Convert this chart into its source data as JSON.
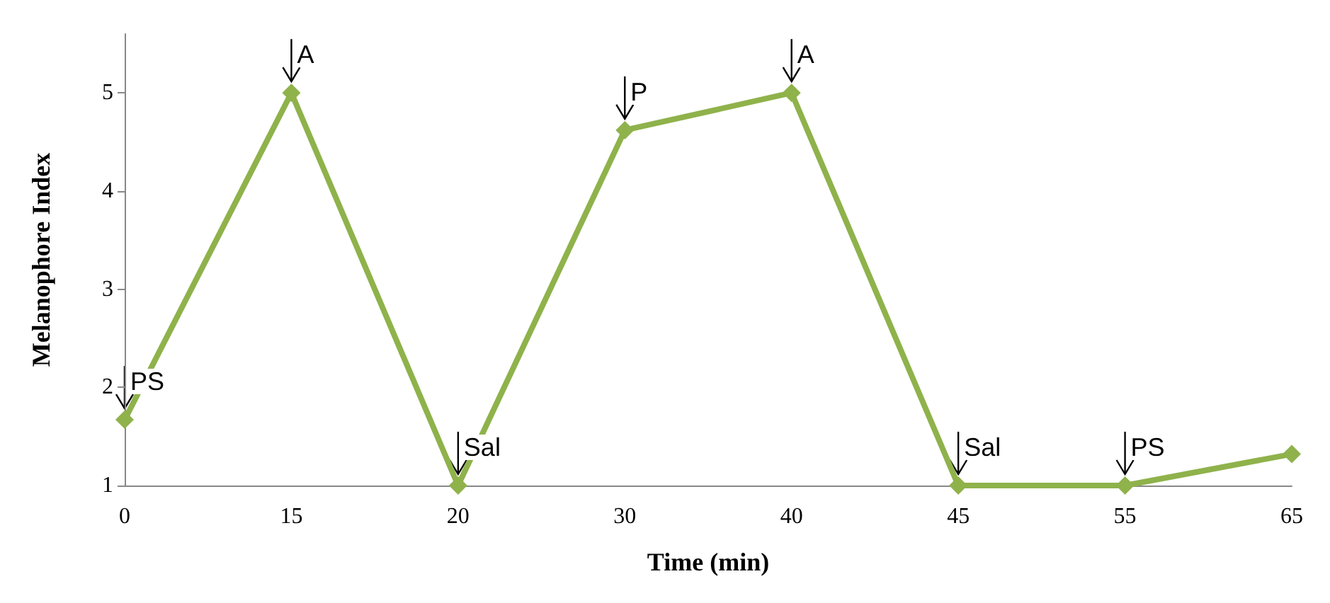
{
  "chart_data": {
    "type": "line",
    "xlabel": "Time (min)",
    "ylabel": "Melanophore Index",
    "categories": [
      "0",
      "15",
      "20",
      "30",
      "40",
      "45",
      "55",
      "65"
    ],
    "series": [
      {
        "color": "#8fb24b",
        "values": [
          1.67,
          5,
          1,
          4.62,
          5,
          1,
          1,
          1.32
        ]
      }
    ],
    "ylim": [
      1,
      5.6
    ],
    "yticks": [
      1,
      2,
      3,
      4,
      5
    ],
    "grid": false,
    "marker": "diamond",
    "line_style": "solid",
    "annotations": [
      {
        "text": "PS",
        "x": "0",
        "y": 1.67
      },
      {
        "text": "A",
        "x": "15",
        "y": 5
      },
      {
        "text": "Sal",
        "x": "20",
        "y": 1
      },
      {
        "text": "P",
        "x": "30",
        "y": 4.62
      },
      {
        "text": "A",
        "x": "40",
        "y": 5
      },
      {
        "text": "Sal",
        "x": "45",
        "y": 1
      },
      {
        "text": "PS",
        "x": "55",
        "y": 1
      }
    ]
  }
}
